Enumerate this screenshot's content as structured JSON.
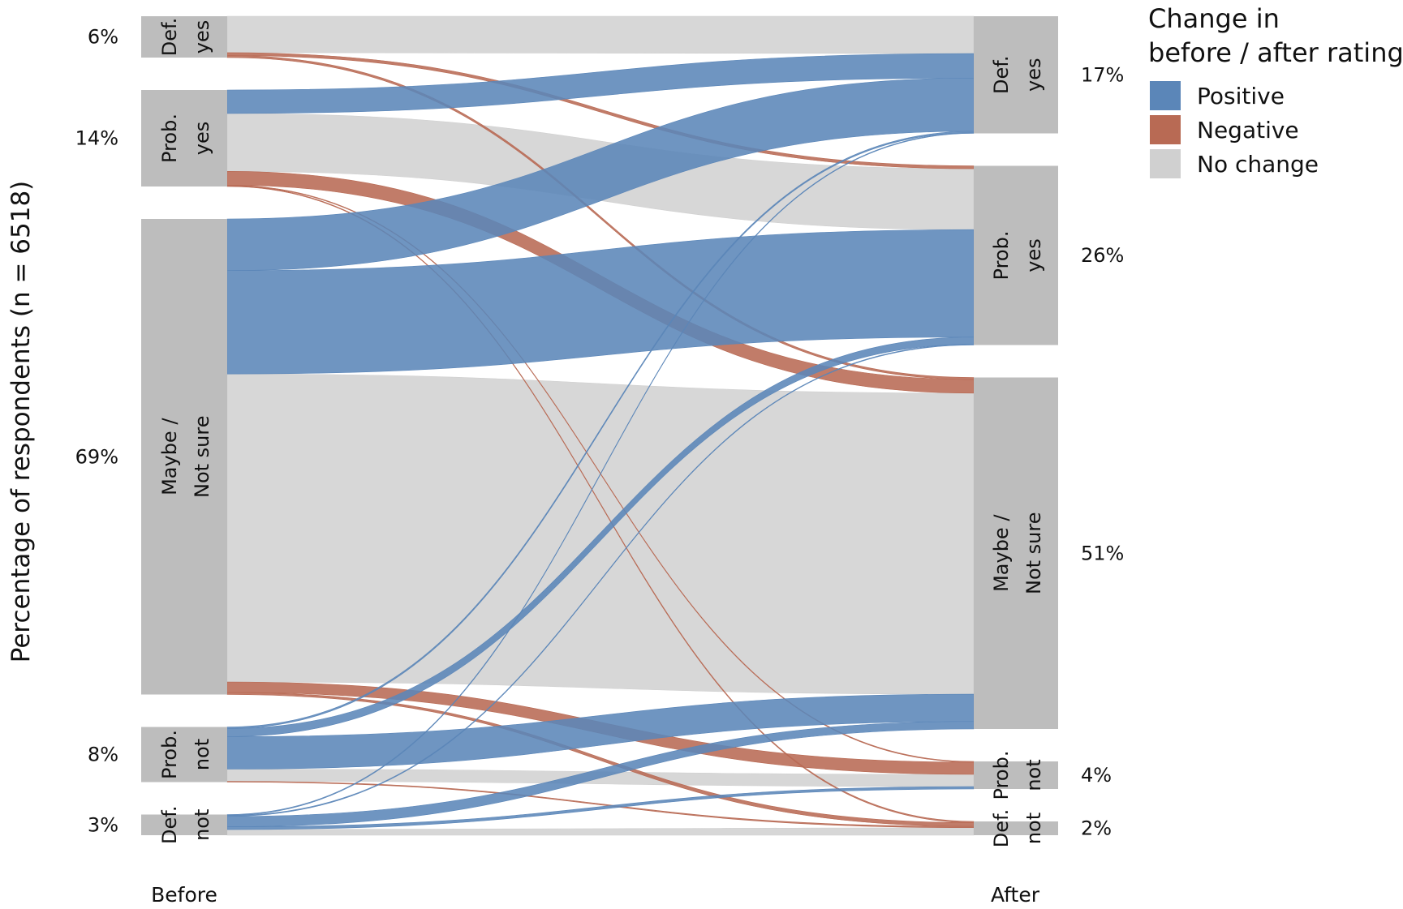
{
  "chart_data": {
    "type": "alluvial",
    "ylabel": "Percentage of respondents (n = 6518)",
    "axes": [
      "Before",
      "After"
    ],
    "legend": {
      "title": [
        "Change in",
        "before / after rating"
      ],
      "position": "top-right",
      "items": [
        {
          "key": "positive",
          "label": "Positive",
          "color": "#5b86b8"
        },
        {
          "key": "negative",
          "label": "Negative",
          "color": "#b86a54"
        },
        {
          "key": "nochange",
          "label": "No change",
          "color": "#d0d0d0"
        }
      ]
    },
    "categories": [
      "Def. yes",
      "Prob. yes",
      "Maybe / Not sure",
      "Prob. not",
      "Def. not"
    ],
    "category_labels": [
      [
        "Def.",
        "yes"
      ],
      [
        "Prob.",
        "yes"
      ],
      [
        "Maybe /",
        "Not sure"
      ],
      [
        "Prob.",
        "not"
      ],
      [
        "Def.",
        "not"
      ]
    ],
    "before_pct_labels": [
      "6%",
      "14%",
      "69%",
      "8%",
      "3%"
    ],
    "after_pct_labels": [
      "17%",
      "26%",
      "51%",
      "4%",
      "2%"
    ],
    "before_values": [
      6,
      14,
      69,
      8,
      3
    ],
    "after_values": [
      17,
      26,
      51,
      4,
      2
    ],
    "flows": [
      {
        "from": "Def. yes",
        "to": "Def. yes",
        "value": 5.2,
        "change": "nochange"
      },
      {
        "from": "Def. yes",
        "to": "Prob. yes",
        "value": 0.4,
        "change": "negative"
      },
      {
        "from": "Def. yes",
        "to": "Maybe / Not sure",
        "value": 0.3,
        "change": "negative"
      },
      {
        "from": "Prob. yes",
        "to": "Def. yes",
        "value": 3.4,
        "change": "positive"
      },
      {
        "from": "Prob. yes",
        "to": "Prob. yes",
        "value": 8.4,
        "change": "nochange"
      },
      {
        "from": "Prob. yes",
        "to": "Maybe / Not sure",
        "value": 2.0,
        "change": "negative"
      },
      {
        "from": "Prob. yes",
        "to": "Prob. not",
        "value": 0.1,
        "change": "negative"
      },
      {
        "from": "Prob. yes",
        "to": "Def. not",
        "value": 0.1,
        "change": "negative"
      },
      {
        "from": "Maybe / Not sure",
        "to": "Def. yes",
        "value": 7.4,
        "change": "positive"
      },
      {
        "from": "Maybe / Not sure",
        "to": "Prob. yes",
        "value": 14.8,
        "change": "positive"
      },
      {
        "from": "Maybe / Not sure",
        "to": "Maybe / Not sure",
        "value": 44.1,
        "change": "nochange"
      },
      {
        "from": "Maybe / Not sure",
        "to": "Prob. not",
        "value": 1.5,
        "change": "negative"
      },
      {
        "from": "Maybe / Not sure",
        "to": "Def. not",
        "value": 0.3,
        "change": "negative"
      },
      {
        "from": "Prob. not",
        "to": "Def. yes",
        "value": 0.2,
        "change": "positive"
      },
      {
        "from": "Prob. not",
        "to": "Prob. yes",
        "value": 1.0,
        "change": "positive"
      },
      {
        "from": "Prob. not",
        "to": "Maybe / Not sure",
        "value": 4.0,
        "change": "positive"
      },
      {
        "from": "Prob. not",
        "to": "Prob. not",
        "value": 1.5,
        "change": "nochange"
      },
      {
        "from": "Prob. not",
        "to": "Def. not",
        "value": 0.1,
        "change": "negative"
      },
      {
        "from": "Def. not",
        "to": "Def. yes",
        "value": 0.1,
        "change": "positive"
      },
      {
        "from": "Def. not",
        "to": "Prob. yes",
        "value": 0.1,
        "change": "positive"
      },
      {
        "from": "Def. not",
        "to": "Maybe / Not sure",
        "value": 1.1,
        "change": "positive"
      },
      {
        "from": "Def. not",
        "to": "Prob. not",
        "value": 0.3,
        "change": "positive"
      },
      {
        "from": "Def. not",
        "to": "Def. not",
        "value": 0.6,
        "change": "nochange"
      }
    ]
  }
}
